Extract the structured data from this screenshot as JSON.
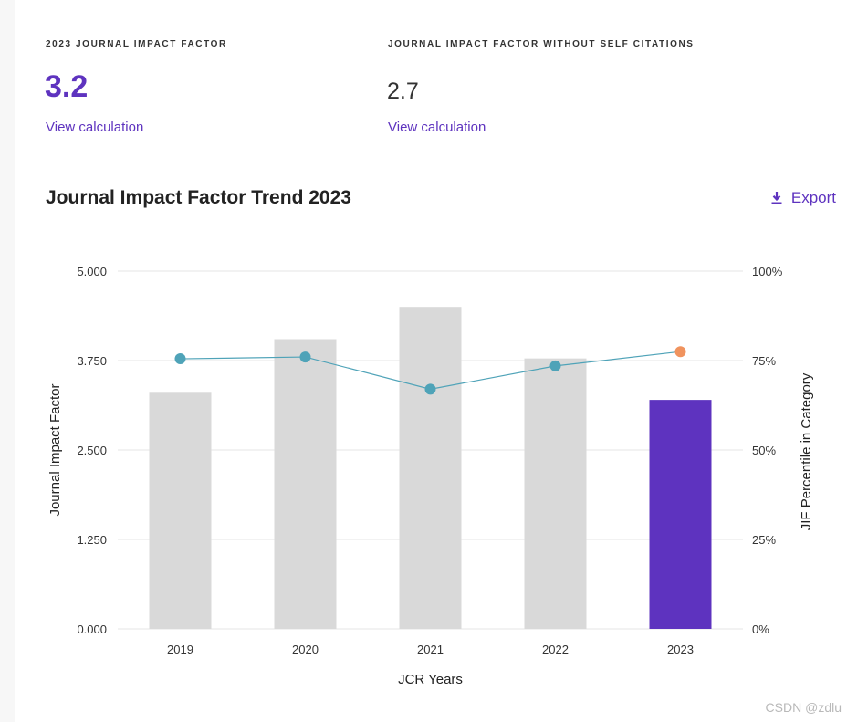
{
  "metrics": {
    "jif": {
      "label": "2023 JOURNAL IMPACT FACTOR",
      "value": "3.2",
      "link": "View calculation"
    },
    "jif_no_self": {
      "label": "JOURNAL IMPACT FACTOR WITHOUT SELF CITATIONS",
      "value": "2.7",
      "link": "View calculation"
    }
  },
  "header": {
    "title": "Journal Impact Factor Trend 2023",
    "export_label": "Export"
  },
  "colors": {
    "accent": "#5e33bf",
    "bar": "#d9d9d9",
    "line": "#4fa3b8",
    "highlight_point": "#f0935e",
    "grid": "#e6e6e6"
  },
  "chart_data": {
    "type": "bar",
    "title": "Journal Impact Factor Trend 2023",
    "xlabel": "JCR Years",
    "ylabel": "Journal Impact Factor",
    "y2label": "JIF Percentile in Category",
    "categories": [
      "2019",
      "2020",
      "2021",
      "2022",
      "2023"
    ],
    "ylim": [
      0,
      5
    ],
    "y2lim": [
      0,
      100
    ],
    "yticks": [
      "0.000",
      "1.250",
      "2.500",
      "3.750",
      "5.000"
    ],
    "y2ticks": [
      "0%",
      "25%",
      "50%",
      "75%",
      "100%"
    ],
    "series": [
      {
        "name": "Journal Impact Factor",
        "type": "bar",
        "axis": "left",
        "values": [
          3.3,
          4.05,
          4.5,
          3.78,
          3.2
        ]
      },
      {
        "name": "JIF Percentile in Category",
        "type": "line",
        "axis": "right",
        "values": [
          75.5,
          76.0,
          67.0,
          73.5,
          77.5
        ]
      }
    ]
  },
  "watermark": "CSDN @zdlu"
}
